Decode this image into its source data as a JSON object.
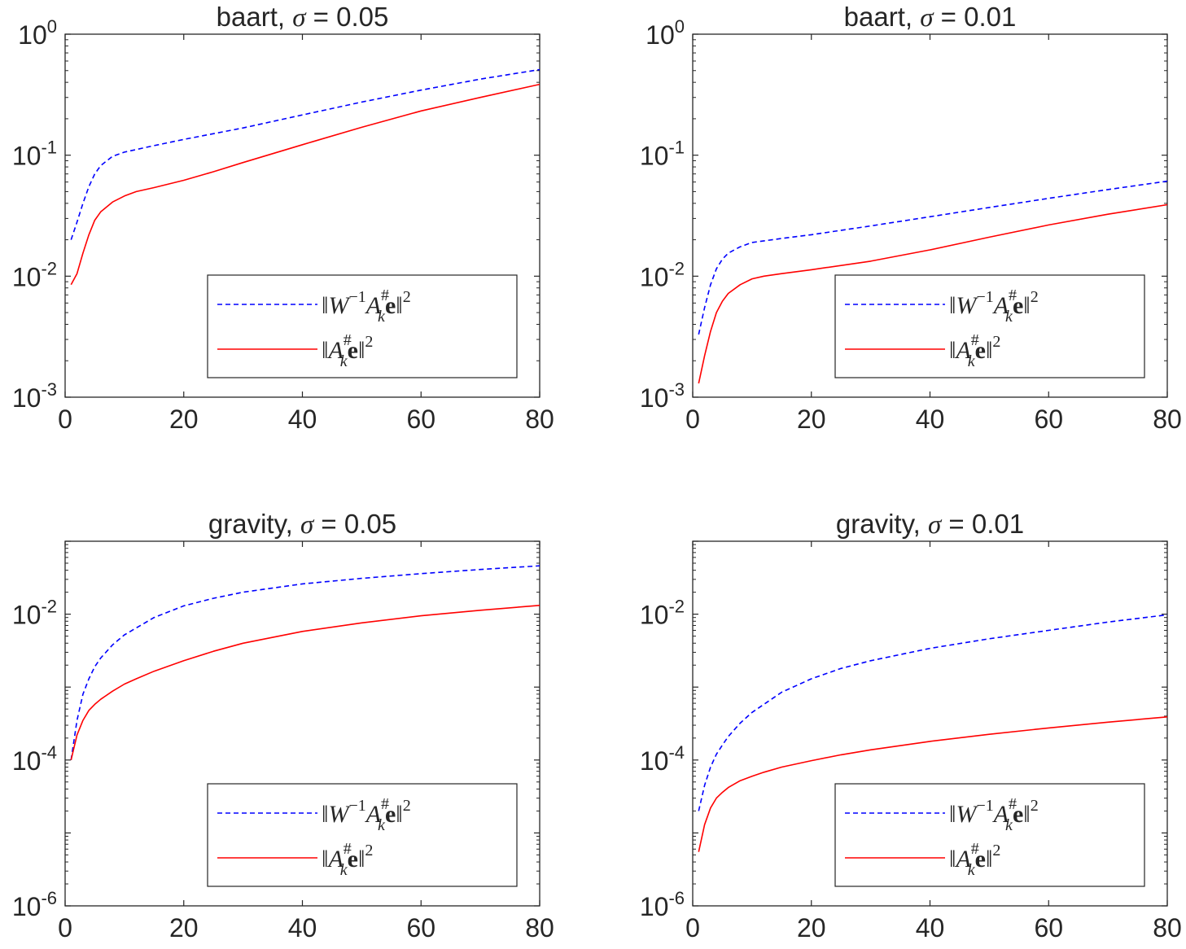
{
  "chart_data": [
    {
      "type": "line",
      "title_prefix": "baart, ",
      "title_symbol": "σ",
      "title_suffix": " = 0.05",
      "yscale": "log",
      "xlim": [
        0,
        80
      ],
      "xticks": [
        0,
        20,
        40,
        60,
        80
      ],
      "ylim_log10": [
        -3,
        0
      ],
      "yticks_exp": [
        -3,
        -2,
        -1,
        0
      ],
      "legend": {
        "location": "bottom-right"
      },
      "series": [
        {
          "name": "||W^{-1} A_k^# e||^2",
          "color": "#0000ff",
          "style": "dashed",
          "x": [
            1,
            2,
            3,
            4,
            5,
            6,
            8,
            10,
            15,
            20,
            30,
            40,
            50,
            60,
            70,
            80
          ],
          "y": [
            0.02,
            0.028,
            0.04,
            0.055,
            0.07,
            0.082,
            0.098,
            0.106,
            0.12,
            0.135,
            0.168,
            0.215,
            0.275,
            0.345,
            0.425,
            0.51
          ]
        },
        {
          "name": "||A_k^# e||^2",
          "color": "#ff0000",
          "style": "solid",
          "x": [
            1,
            2,
            3,
            4,
            5,
            6,
            8,
            10,
            12,
            15,
            20,
            25,
            30,
            40,
            50,
            60,
            70,
            80
          ],
          "y": [
            0.0085,
            0.0105,
            0.0155,
            0.022,
            0.029,
            0.034,
            0.041,
            0.046,
            0.05,
            0.054,
            0.062,
            0.073,
            0.087,
            0.122,
            0.17,
            0.232,
            0.3,
            0.385
          ]
        }
      ]
    },
    {
      "type": "line",
      "title_prefix": "baart, ",
      "title_symbol": "σ",
      "title_suffix": " = 0.01",
      "yscale": "log",
      "xlim": [
        0,
        80
      ],
      "xticks": [
        0,
        20,
        40,
        60,
        80
      ],
      "ylim_log10": [
        -3,
        0
      ],
      "yticks_exp": [
        -3,
        -2,
        -1,
        0
      ],
      "legend": {
        "location": "bottom-right"
      },
      "series": [
        {
          "name": "||W^{-1} A_k^# e||^2",
          "color": "#0000ff",
          "style": "dashed",
          "x": [
            1,
            2,
            3,
            4,
            5,
            6,
            8,
            10,
            15,
            20,
            30,
            40,
            50,
            60,
            70,
            80
          ],
          "y": [
            0.0033,
            0.0055,
            0.0085,
            0.0115,
            0.0138,
            0.0155,
            0.0175,
            0.019,
            0.0205,
            0.022,
            0.026,
            0.031,
            0.037,
            0.044,
            0.052,
            0.061
          ]
        },
        {
          "name": "||A_k^# e||^2",
          "color": "#ff0000",
          "style": "solid",
          "x": [
            1,
            2,
            3,
            4,
            5,
            6,
            8,
            10,
            12,
            15,
            20,
            30,
            40,
            50,
            60,
            70,
            80
          ],
          "y": [
            0.0013,
            0.0022,
            0.0035,
            0.005,
            0.0062,
            0.0072,
            0.0085,
            0.0095,
            0.01,
            0.0105,
            0.0113,
            0.0133,
            0.0165,
            0.021,
            0.0265,
            0.0325,
            0.039
          ]
        }
      ]
    },
    {
      "type": "line",
      "title_prefix": "gravity, ",
      "title_symbol": "σ",
      "title_suffix": " = 0.05",
      "yscale": "log",
      "xlim": [
        0,
        80
      ],
      "xticks": [
        0,
        20,
        40,
        60,
        80
      ],
      "ylim_log10": [
        -6,
        -1
      ],
      "yticks_exp": [
        -6,
        -4,
        -2
      ],
      "legend": {
        "location": "bottom-right"
      },
      "series": [
        {
          "name": "||W^{-1} A_k^# e||^2",
          "color": "#0000ff",
          "style": "dashed",
          "x": [
            1,
            2,
            3,
            4,
            5,
            6,
            8,
            10,
            15,
            20,
            25,
            30,
            40,
            50,
            60,
            70,
            80
          ],
          "y": [
            0.0001,
            0.00035,
            0.0008,
            0.0013,
            0.0019,
            0.0025,
            0.0038,
            0.0052,
            0.009,
            0.013,
            0.0165,
            0.02,
            0.026,
            0.031,
            0.036,
            0.041,
            0.046
          ]
        },
        {
          "name": "||A_k^# e||^2",
          "color": "#ff0000",
          "style": "solid",
          "x": [
            1,
            2,
            3,
            4,
            5,
            6,
            8,
            10,
            12,
            15,
            20,
            25,
            30,
            40,
            50,
            60,
            70,
            80
          ],
          "y": [
            0.0001,
            0.00022,
            0.00035,
            0.00048,
            0.00058,
            0.00068,
            0.00088,
            0.0011,
            0.0013,
            0.00165,
            0.0023,
            0.0031,
            0.004,
            0.0058,
            0.0076,
            0.0095,
            0.0113,
            0.0132
          ]
        }
      ]
    },
    {
      "type": "line",
      "title_prefix": "gravity, ",
      "title_symbol": "σ",
      "title_suffix": " = 0.01",
      "yscale": "log",
      "xlim": [
        0,
        80
      ],
      "xticks": [
        0,
        20,
        40,
        60,
        80
      ],
      "ylim_log10": [
        -6,
        -1
      ],
      "yticks_exp": [
        -6,
        -4,
        -2
      ],
      "legend": {
        "location": "bottom-right"
      },
      "series": [
        {
          "name": "||W^{-1} A_k^# e||^2",
          "color": "#0000ff",
          "style": "dashed",
          "x": [
            1,
            2,
            3,
            4,
            5,
            6,
            8,
            10,
            15,
            20,
            25,
            30,
            40,
            50,
            60,
            70,
            80
          ],
          "y": [
            2e-05,
            4.5e-05,
            8e-05,
            0.00012,
            0.00016,
            0.00021,
            0.00032,
            0.00045,
            0.00085,
            0.0013,
            0.0018,
            0.0023,
            0.0034,
            0.0046,
            0.006,
            0.0078,
            0.0098
          ]
        },
        {
          "name": "||A_k^# e||^2",
          "color": "#ff0000",
          "style": "solid",
          "x": [
            1,
            2,
            3,
            4,
            5,
            6,
            8,
            10,
            12,
            15,
            20,
            25,
            30,
            40,
            50,
            60,
            70,
            80
          ],
          "y": [
            5.5e-06,
            1.3e-05,
            2.2e-05,
            3e-05,
            3.6e-05,
            4.2e-05,
            5.2e-05,
            6e-05,
            6.8e-05,
            8e-05,
            9.8e-05,
            0.000118,
            0.000138,
            0.00018,
            0.000225,
            0.000275,
            0.00033,
            0.00039
          ]
        }
      ]
    }
  ]
}
